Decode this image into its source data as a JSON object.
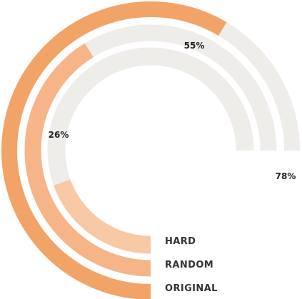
{
  "chart_data": {
    "type": "radial-bar",
    "series": [
      {
        "name": "ORIGINAL",
        "value": 78,
        "value_label": "78%",
        "color": "#F2A468"
      },
      {
        "name": "RANDOM",
        "value": 55,
        "value_label": "55%",
        "color": "#F5B589"
      },
      {
        "name": "HARD",
        "value": 26,
        "value_label": "26%",
        "color": "#F8C9A7"
      }
    ],
    "max": 100,
    "track_color": "#EFEDEA",
    "unit": "%"
  }
}
